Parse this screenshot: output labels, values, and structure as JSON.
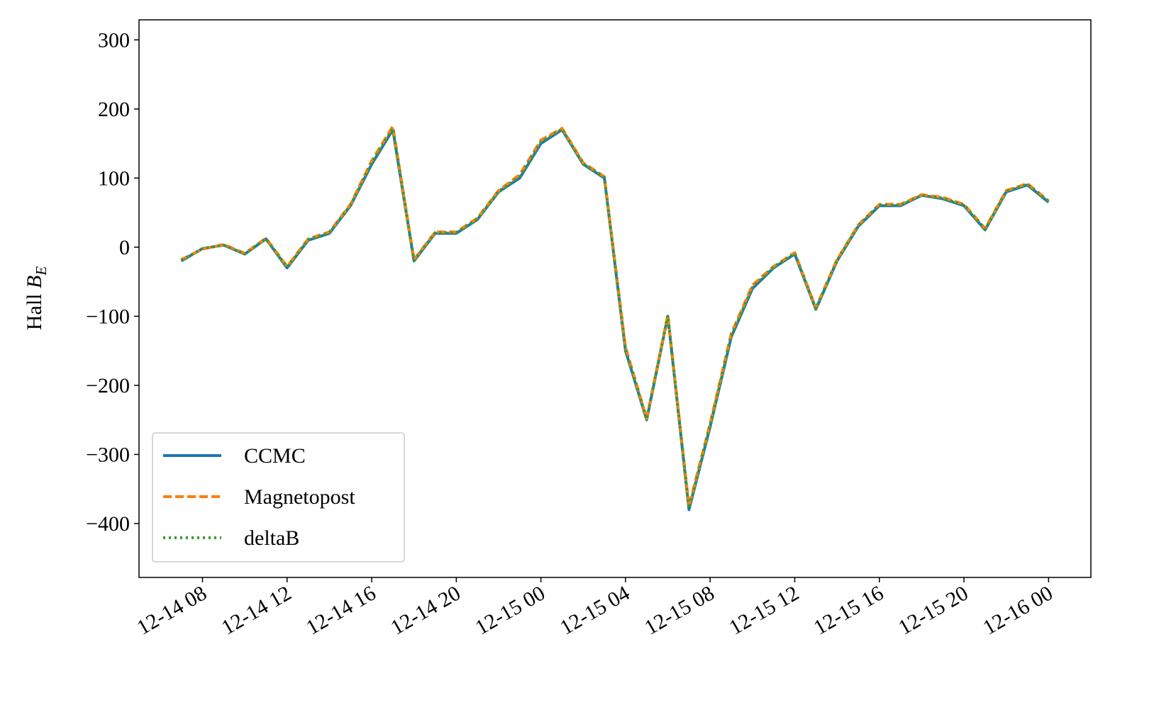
{
  "chart_data": {
    "type": "line",
    "ylabel": {
      "text": "Hall",
      "symbol": "B",
      "subscript": "E"
    },
    "x": [
      "12-14 07",
      "12-14 08",
      "12-14 09",
      "12-14 10",
      "12-14 11",
      "12-14 12",
      "12-14 13",
      "12-14 14",
      "12-14 15",
      "12-14 16",
      "12-14 17",
      "12-14 18",
      "12-14 19",
      "12-14 20",
      "12-14 21",
      "12-14 22",
      "12-14 23",
      "12-15 00",
      "12-15 01",
      "12-15 02",
      "12-15 03",
      "12-15 04",
      "12-15 05",
      "12-15 06",
      "12-15 07",
      "12-15 08",
      "12-15 09",
      "12-15 10",
      "12-15 11",
      "12-15 12",
      "12-15 13",
      "12-15 14",
      "12-15 15",
      "12-15 16",
      "12-15 17",
      "12-15 18",
      "12-15 19",
      "12-15 20",
      "12-15 21",
      "12-15 22",
      "12-15 23",
      "12-16 00"
    ],
    "series": [
      {
        "name": "CCMC",
        "color": "#1f77b4",
        "style": "solid",
        "values": [
          -20,
          -2,
          3,
          -10,
          12,
          -30,
          10,
          20,
          60,
          120,
          170,
          -20,
          20,
          20,
          40,
          80,
          100,
          150,
          170,
          120,
          100,
          -150,
          -250,
          -100,
          -380,
          -260,
          -130,
          -60,
          -30,
          -10,
          -90,
          -20,
          30,
          60,
          60,
          75,
          70,
          60,
          25,
          80,
          90,
          65
        ]
      },
      {
        "name": "Magnetopost",
        "color": "#ff7f0e",
        "style": "dashed",
        "values": [
          -18,
          -3,
          4,
          -9,
          13,
          -28,
          12,
          22,
          62,
          125,
          175,
          -18,
          22,
          22,
          42,
          82,
          105,
          155,
          172,
          122,
          102,
          -145,
          -248,
          -98,
          -375,
          -255,
          -125,
          -55,
          -28,
          -8,
          -88,
          -18,
          32,
          62,
          62,
          76,
          72,
          62,
          27,
          82,
          92,
          67
        ]
      },
      {
        "name": "deltaB",
        "color": "#2ca02c",
        "style": "dotted",
        "values": [
          -19,
          -2,
          3,
          -10,
          12,
          -29,
          11,
          21,
          61,
          122,
          172,
          -19,
          21,
          21,
          41,
          81,
          102,
          152,
          171,
          121,
          101,
          -148,
          -249,
          -99,
          -378,
          -258,
          -128,
          -58,
          -29,
          -9,
          -89,
          -19,
          31,
          61,
          61,
          75,
          71,
          61,
          26,
          81,
          91,
          66
        ]
      }
    ],
    "xlim": [
      "12-14 05",
      "12-16 02"
    ],
    "xticks": [
      "12-14 08",
      "12-14 12",
      "12-14 16",
      "12-14 20",
      "12-15 00",
      "12-15 04",
      "12-15 08",
      "12-15 12",
      "12-15 16",
      "12-15 20",
      "12-16 00"
    ],
    "ylim": [
      -478,
      329
    ],
    "yticks": [
      300,
      200,
      100,
      0,
      {
        "value": -100,
        "label": "−100"
      },
      {
        "value": -200,
        "label": "−200"
      },
      {
        "value": -300,
        "label": "−300"
      },
      {
        "value": -400,
        "label": "−400"
      }
    ],
    "grid": false,
    "legend": "lower left"
  }
}
